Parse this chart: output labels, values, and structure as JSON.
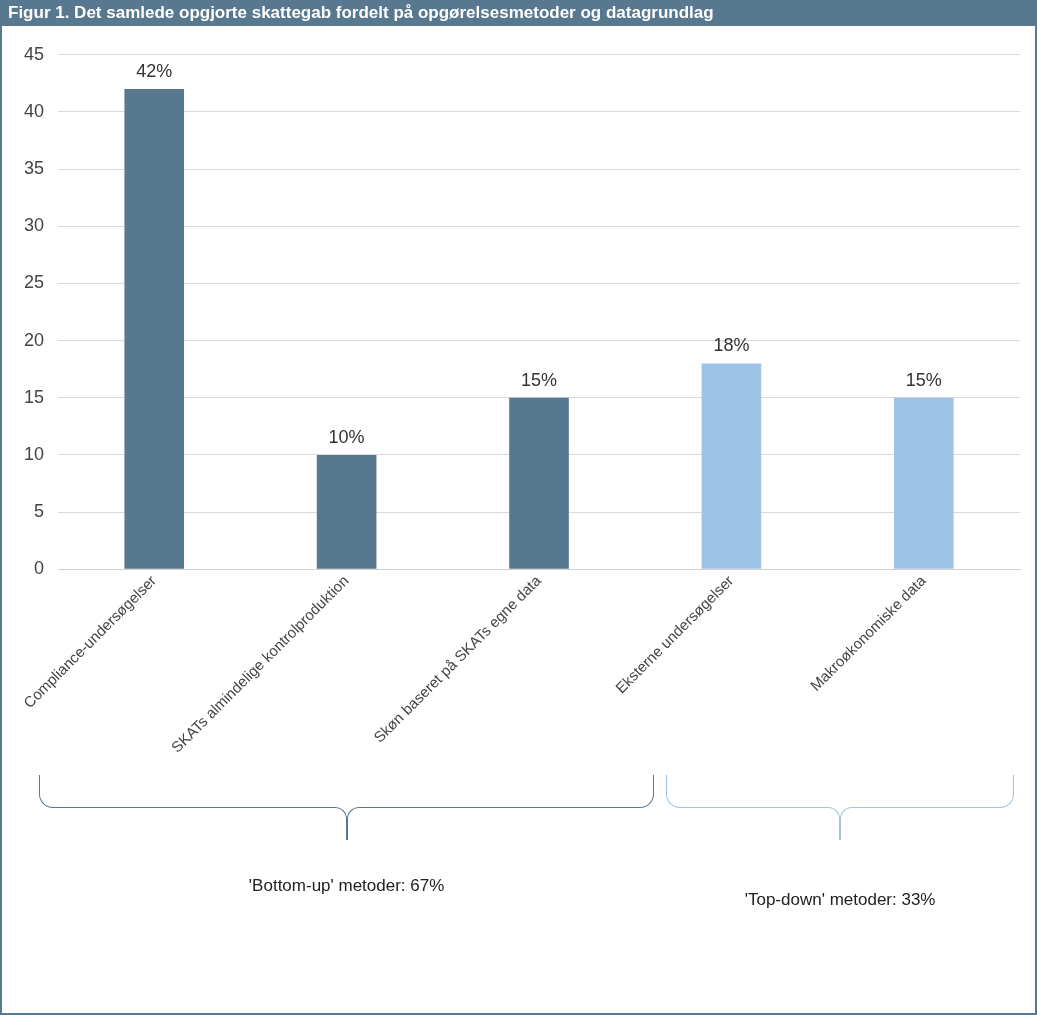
{
  "chart_data": {
    "type": "bar",
    "title": "Figur 1. Det samlede opgjorte skattegab fordelt på opgørelsesmetoder og datagrundlag",
    "categories": [
      "Compliance-undersøgelser",
      "SKATs almindelige kontrolproduktion",
      "Skøn baseret på SKATs egne data",
      "Eksterne undersøgelser",
      "Makroøkonomiske data"
    ],
    "values": [
      42,
      10,
      15,
      18,
      15
    ],
    "colors": [
      "#587890",
      "#587890",
      "#587890",
      "#9dc3e6",
      "#9dc3e6"
    ],
    "value_labels": [
      "42%",
      "10%",
      "15%",
      "18%",
      "15%"
    ],
    "ylim": [
      0,
      45
    ],
    "yticks": [
      0,
      5,
      10,
      15,
      20,
      25,
      30,
      35,
      40,
      45
    ],
    "grid": "y",
    "legend": false,
    "annotations": [
      "'Bottom-up' metoder: 67%",
      "'Top-down' metoder: 33%"
    ]
  }
}
